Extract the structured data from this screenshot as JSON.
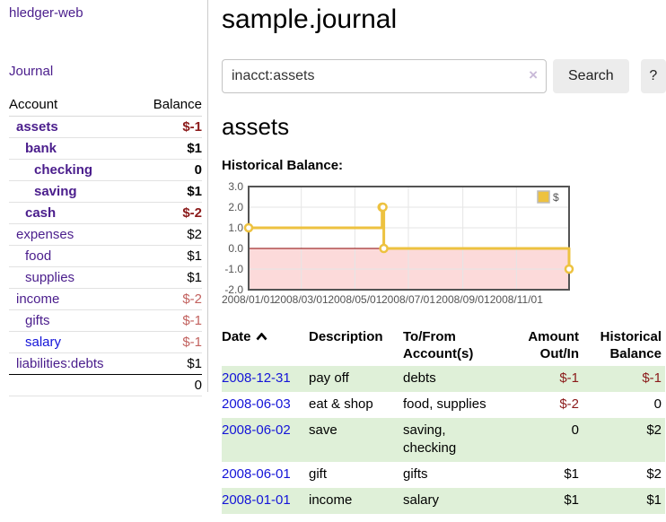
{
  "brand": "hledger-web",
  "nav": {
    "journal": "Journal"
  },
  "page": {
    "title": "sample.journal",
    "account_heading": "assets"
  },
  "search": {
    "value": "inacct:assets",
    "clear_icon": "×",
    "button": "Search",
    "help_button": "?"
  },
  "sidebar_accounts": {
    "headers": [
      "Account",
      "Balance"
    ],
    "rows": [
      {
        "name": "assets",
        "balance": "$-1",
        "depth": 1,
        "bold": true,
        "balance_style": "neg-dark",
        "link_color": "purple"
      },
      {
        "name": "bank",
        "balance": "$1",
        "depth": 2,
        "bold": true,
        "balance_style": "pos",
        "link_color": "purple"
      },
      {
        "name": "checking",
        "balance": "0",
        "depth": 3,
        "bold": true,
        "balance_style": "pos",
        "link_color": "purple"
      },
      {
        "name": "saving",
        "balance": "$1",
        "depth": 3,
        "bold": true,
        "balance_style": "pos",
        "link_color": "purple"
      },
      {
        "name": "cash",
        "balance": "$-2",
        "depth": 2,
        "bold": true,
        "balance_style": "neg-dark",
        "link_color": "purple"
      },
      {
        "name": "expenses",
        "balance": "$2",
        "depth": 1,
        "bold": false,
        "balance_style": "pos",
        "link_color": "purple"
      },
      {
        "name": "food",
        "balance": "$1",
        "depth": 2,
        "bold": false,
        "balance_style": "pos",
        "link_color": "purple"
      },
      {
        "name": "supplies",
        "balance": "$1",
        "depth": 2,
        "bold": false,
        "balance_style": "pos",
        "link_color": "purple"
      },
      {
        "name": "income",
        "balance": "$-2",
        "depth": 1,
        "bold": false,
        "balance_style": "neg-rose",
        "link_color": "purple"
      },
      {
        "name": "gifts",
        "balance": "$-1",
        "depth": 2,
        "bold": false,
        "balance_style": "neg-rose",
        "link_color": "purple"
      },
      {
        "name": "salary",
        "balance": "$-1",
        "depth": 2,
        "bold": false,
        "balance_style": "neg-rose",
        "link_color": "blue"
      },
      {
        "name": "liabilities:debts",
        "balance": "$1",
        "depth": 1,
        "bold": false,
        "balance_style": "pos",
        "link_color": "purple"
      }
    ],
    "total": "0"
  },
  "chart_data": {
    "type": "line",
    "step": true,
    "title": "Historical Balance:",
    "series": [
      {
        "name": "$",
        "color": "#edc240",
        "points": [
          [
            "2008-01-01",
            1
          ],
          [
            "2008-06-01",
            2
          ],
          [
            "2008-06-02",
            2
          ],
          [
            "2008-06-03",
            0
          ],
          [
            "2008-12-31",
            -1
          ]
        ]
      }
    ],
    "xlim": [
      "2008-01-01",
      "2008-12-31"
    ],
    "ylim": [
      -2,
      3
    ],
    "x_ticks": [
      {
        "date": "2008-01-01",
        "label": "2008/01/01"
      },
      {
        "date": "2008-03-01",
        "label": "2008/03/01"
      },
      {
        "date": "2008-05-01",
        "label": "2008/05/01"
      },
      {
        "date": "2008-07-01",
        "label": "2008/07/01"
      },
      {
        "date": "2008-09-01",
        "label": "2008/09/01"
      },
      {
        "date": "2008-11-01",
        "label": "2008/11/01"
      }
    ],
    "y_ticks": [
      {
        "value": 3,
        "label": "3.0"
      },
      {
        "value": 2,
        "label": "2.0"
      },
      {
        "value": 1,
        "label": "1.0"
      },
      {
        "value": 0,
        "label": "0.0"
      },
      {
        "value": -1,
        "label": "-1.0"
      },
      {
        "value": -2,
        "label": "-2.0"
      }
    ],
    "legend": {
      "label": "$",
      "position": "top-right"
    },
    "grid": true,
    "colors": {
      "negative_region": "#fcdada",
      "zero_line": "#8b0000",
      "border": "#545454",
      "gridline": "#e5e5e5"
    }
  },
  "register": {
    "headers": {
      "date": "Date",
      "description": "Description",
      "tofrom": "To/From Account(s)",
      "amount": "Amount Out/In",
      "balance": "Historical Balance"
    },
    "sort": {
      "column": "date",
      "direction": "ascending"
    },
    "rows": [
      {
        "date": "2008-12-31",
        "description": "pay off",
        "accounts": "debts",
        "amount": "$-1",
        "amount_neg": true,
        "balance": "$-1",
        "balance_neg": true
      },
      {
        "date": "2008-06-03",
        "description": "eat & shop",
        "accounts": "food, supplies",
        "amount": "$-2",
        "amount_neg": true,
        "balance": "0",
        "balance_neg": false
      },
      {
        "date": "2008-06-02",
        "description": "save",
        "accounts": "saving, checking",
        "amount": "0",
        "amount_neg": false,
        "balance": "$2",
        "balance_neg": false
      },
      {
        "date": "2008-06-01",
        "description": "gift",
        "accounts": "gifts",
        "amount": "$1",
        "amount_neg": false,
        "balance": "$2",
        "balance_neg": false
      },
      {
        "date": "2008-01-01",
        "description": "income",
        "accounts": "salary",
        "amount": "$1",
        "amount_neg": false,
        "balance": "$1",
        "balance_neg": false
      }
    ]
  }
}
